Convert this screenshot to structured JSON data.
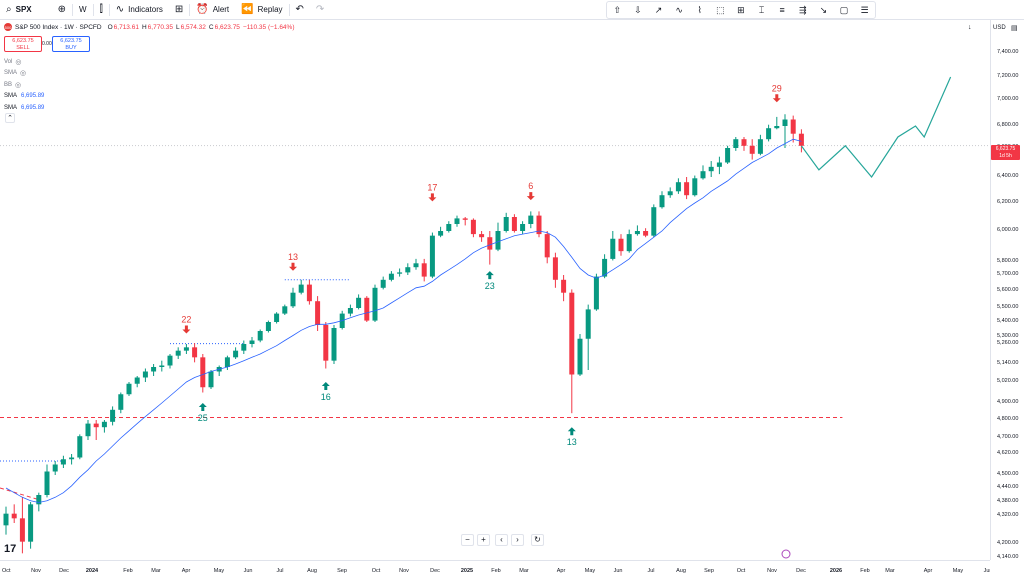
{
  "toolbar": {
    "symbol": "SPX",
    "interval": "W",
    "indicators_label": "Indicators",
    "alert_label": "Alert",
    "replay_label": "Replay"
  },
  "legend": {
    "title": "S&P 500 Index · 1W · SPCFD",
    "open_label": "O",
    "open": "6,713.61",
    "high_label": "H",
    "high": "6,770.35",
    "low_label": "L",
    "low": "6,574.32",
    "close_label": "C",
    "close": "6,623.75",
    "change": "−110.35 (−1.64%)",
    "sell_price": "6,623.75",
    "sell_label": "SELL",
    "buy_price": "6,623.75",
    "buy_label": "BUY",
    "spread": "0.00",
    "indicators": [
      {
        "name": "Vol",
        "value": ""
      },
      {
        "name": "SMA",
        "value": ""
      },
      {
        "name": "BB",
        "value": ""
      },
      {
        "name": "SMA",
        "value": "6,695.89"
      },
      {
        "name": "SMA",
        "value": "6,695.89"
      }
    ]
  },
  "price_axis": {
    "currency": "USD",
    "current_price": "6,623.75",
    "countdown": "1d 5h"
  },
  "colors": {
    "up": "#089981",
    "down": "#f23645",
    "sma": "#2962ff",
    "projection": "#26a69a",
    "annotation_down": "#e53935",
    "annotation_up": "#00897b"
  },
  "chart_data": {
    "type": "candlestick",
    "series_name": "S&P 500 Index",
    "interval": "1W",
    "y_ticks": [
      4140,
      4200,
      4320,
      4380,
      4440,
      4500,
      4620,
      4700,
      4800,
      4900,
      5020,
      5140,
      5260,
      5300,
      5400,
      5500,
      5600,
      5700,
      5800,
      6000,
      6200,
      6400,
      6600,
      6800,
      7000,
      7200,
      7400
    ],
    "y_tick_labels": [
      "4,140.00",
      "4,200.00",
      "4,320.00",
      "4,380.00",
      "4,440.00",
      "4,500.00",
      "4,620.00",
      "4,700.00",
      "4,800.00",
      "4,900.00",
      "5,020.00",
      "5,140.00",
      "5,260.00",
      "5,300.00",
      "5,400.00",
      "5,500.00",
      "5,600.00",
      "5,700.00",
      "5,800.00",
      "6,000.00",
      "6,200.00",
      "6,400.00",
      "6,600.00",
      "6,800.00",
      "7,000.00",
      "7,200.00",
      "7,400.00"
    ],
    "x_labels": [
      "Oct",
      "Nov",
      "Dec",
      "2024",
      "Feb",
      "Mar",
      "Apr",
      "May",
      "Jun",
      "Jul",
      "Aug",
      "Sep",
      "Oct",
      "Nov",
      "Dec",
      "2025",
      "Feb",
      "Mar",
      "Apr",
      "May",
      "Jun",
      "Jul",
      "Aug",
      "Sep",
      "Oct",
      "Nov",
      "Dec",
      "2026",
      "Feb",
      "Mar",
      "Apr",
      "May",
      "Jun"
    ],
    "candles": [
      {
        "o": 4280,
        "h": 4360,
        "l": 4240,
        "c": 4330
      },
      {
        "o": 4330,
        "h": 4370,
        "l": 4290,
        "c": 4310
      },
      {
        "o": 4310,
        "h": 4400,
        "l": 4160,
        "c": 4210
      },
      {
        "o": 4210,
        "h": 4380,
        "l": 4180,
        "c": 4370
      },
      {
        "o": 4370,
        "h": 4420,
        "l": 4340,
        "c": 4410
      },
      {
        "o": 4410,
        "h": 4560,
        "l": 4400,
        "c": 4520
      },
      {
        "o": 4520,
        "h": 4580,
        "l": 4500,
        "c": 4560
      },
      {
        "o": 4560,
        "h": 4610,
        "l": 4540,
        "c": 4590
      },
      {
        "o": 4590,
        "h": 4620,
        "l": 4560,
        "c": 4600
      },
      {
        "o": 4600,
        "h": 4720,
        "l": 4590,
        "c": 4710
      },
      {
        "o": 4710,
        "h": 4800,
        "l": 4690,
        "c": 4780
      },
      {
        "o": 4780,
        "h": 4800,
        "l": 4690,
        "c": 4760
      },
      {
        "o": 4760,
        "h": 4800,
        "l": 4730,
        "c": 4790
      },
      {
        "o": 4790,
        "h": 4880,
        "l": 4770,
        "c": 4860
      },
      {
        "o": 4860,
        "h": 4960,
        "l": 4840,
        "c": 4950
      },
      {
        "o": 4950,
        "h": 5020,
        "l": 4940,
        "c": 5010
      },
      {
        "o": 5010,
        "h": 5060,
        "l": 4990,
        "c": 5050
      },
      {
        "o": 5050,
        "h": 5110,
        "l": 5020,
        "c": 5090
      },
      {
        "o": 5090,
        "h": 5140,
        "l": 5060,
        "c": 5120
      },
      {
        "o": 5120,
        "h": 5160,
        "l": 5090,
        "c": 5130
      },
      {
        "o": 5130,
        "h": 5200,
        "l": 5110,
        "c": 5190
      },
      {
        "o": 5190,
        "h": 5240,
        "l": 5170,
        "c": 5220
      },
      {
        "o": 5220,
        "h": 5260,
        "l": 5200,
        "c": 5240
      },
      {
        "o": 5240,
        "h": 5265,
        "l": 5150,
        "c": 5180
      },
      {
        "o": 5180,
        "h": 5200,
        "l": 4960,
        "c": 4990
      },
      {
        "o": 4990,
        "h": 5100,
        "l": 4980,
        "c": 5090
      },
      {
        "o": 5090,
        "h": 5130,
        "l": 5060,
        "c": 5120
      },
      {
        "o": 5120,
        "h": 5190,
        "l": 5100,
        "c": 5180
      },
      {
        "o": 5180,
        "h": 5240,
        "l": 5170,
        "c": 5220
      },
      {
        "o": 5220,
        "h": 5280,
        "l": 5200,
        "c": 5260
      },
      {
        "o": 5260,
        "h": 5300,
        "l": 5240,
        "c": 5280
      },
      {
        "o": 5280,
        "h": 5350,
        "l": 5270,
        "c": 5340
      },
      {
        "o": 5340,
        "h": 5410,
        "l": 5330,
        "c": 5400
      },
      {
        "o": 5400,
        "h": 5470,
        "l": 5390,
        "c": 5460
      },
      {
        "o": 5460,
        "h": 5520,
        "l": 5450,
        "c": 5510
      },
      {
        "o": 5510,
        "h": 5620,
        "l": 5500,
        "c": 5590
      },
      {
        "o": 5590,
        "h": 5670,
        "l": 5580,
        "c": 5640
      },
      {
        "o": 5640,
        "h": 5670,
        "l": 5520,
        "c": 5540
      },
      {
        "o": 5540,
        "h": 5570,
        "l": 5340,
        "c": 5380
      },
      {
        "o": 5380,
        "h": 5400,
        "l": 5110,
        "c": 5160
      },
      {
        "o": 5160,
        "h": 5380,
        "l": 5140,
        "c": 5360
      },
      {
        "o": 5360,
        "h": 5480,
        "l": 5350,
        "c": 5460
      },
      {
        "o": 5460,
        "h": 5520,
        "l": 5440,
        "c": 5500
      },
      {
        "o": 5500,
        "h": 5580,
        "l": 5490,
        "c": 5560
      },
      {
        "o": 5560,
        "h": 5570,
        "l": 5400,
        "c": 5410
      },
      {
        "o": 5410,
        "h": 5640,
        "l": 5400,
        "c": 5620
      },
      {
        "o": 5620,
        "h": 5690,
        "l": 5610,
        "c": 5670
      },
      {
        "o": 5670,
        "h": 5730,
        "l": 5660,
        "c": 5710
      },
      {
        "o": 5710,
        "h": 5750,
        "l": 5690,
        "c": 5720
      },
      {
        "o": 5720,
        "h": 5790,
        "l": 5700,
        "c": 5760
      },
      {
        "o": 5760,
        "h": 5820,
        "l": 5740,
        "c": 5790
      },
      {
        "o": 5790,
        "h": 5820,
        "l": 5660,
        "c": 5690
      },
      {
        "o": 5690,
        "h": 5990,
        "l": 5680,
        "c": 5970
      },
      {
        "o": 5970,
        "h": 6030,
        "l": 5960,
        "c": 6000
      },
      {
        "o": 6000,
        "h": 6070,
        "l": 5990,
        "c": 6050
      },
      {
        "o": 6050,
        "h": 6110,
        "l": 6030,
        "c": 6090
      },
      {
        "o": 6090,
        "h": 6100,
        "l": 6040,
        "c": 6080
      },
      {
        "o": 6080,
        "h": 6090,
        "l": 5960,
        "c": 5980
      },
      {
        "o": 5980,
        "h": 6000,
        "l": 5930,
        "c": 5960
      },
      {
        "o": 5960,
        "h": 6000,
        "l": 5780,
        "c": 5880
      },
      {
        "o": 5880,
        "h": 6060,
        "l": 5870,
        "c": 6000
      },
      {
        "o": 6000,
        "h": 6130,
        "l": 5990,
        "c": 6100
      },
      {
        "o": 6100,
        "h": 6120,
        "l": 5990,
        "c": 6000
      },
      {
        "o": 6000,
        "h": 6070,
        "l": 5980,
        "c": 6050
      },
      {
        "o": 6050,
        "h": 6140,
        "l": 6020,
        "c": 6110
      },
      {
        "o": 6110,
        "h": 6140,
        "l": 5960,
        "c": 5980
      },
      {
        "o": 5980,
        "h": 6000,
        "l": 5790,
        "c": 5830
      },
      {
        "o": 5830,
        "h": 5860,
        "l": 5620,
        "c": 5670
      },
      {
        "o": 5670,
        "h": 5700,
        "l": 5540,
        "c": 5590
      },
      {
        "o": 5590,
        "h": 5610,
        "l": 4840,
        "c": 5070
      },
      {
        "o": 5070,
        "h": 5320,
        "l": 5060,
        "c": 5290
      },
      {
        "o": 5290,
        "h": 5520,
        "l": 5100,
        "c": 5490
      },
      {
        "o": 5490,
        "h": 5710,
        "l": 5480,
        "c": 5690
      },
      {
        "o": 5690,
        "h": 5850,
        "l": 5680,
        "c": 5820
      },
      {
        "o": 5820,
        "h": 6000,
        "l": 5810,
        "c": 5950
      },
      {
        "o": 5950,
        "h": 5980,
        "l": 5840,
        "c": 5870
      },
      {
        "o": 5870,
        "h": 6010,
        "l": 5860,
        "c": 5980
      },
      {
        "o": 5980,
        "h": 6040,
        "l": 5970,
        "c": 6000
      },
      {
        "o": 6000,
        "h": 6020,
        "l": 5960,
        "c": 5970
      },
      {
        "o": 5970,
        "h": 6190,
        "l": 5960,
        "c": 6170
      },
      {
        "o": 6170,
        "h": 6290,
        "l": 6160,
        "c": 6260
      },
      {
        "o": 6260,
        "h": 6320,
        "l": 6240,
        "c": 6290
      },
      {
        "o": 6290,
        "h": 6390,
        "l": 6270,
        "c": 6360
      },
      {
        "o": 6360,
        "h": 6400,
        "l": 6230,
        "c": 6260
      },
      {
        "o": 6260,
        "h": 6410,
        "l": 6250,
        "c": 6390
      },
      {
        "o": 6390,
        "h": 6480,
        "l": 6380,
        "c": 6440
      },
      {
        "o": 6440,
        "h": 6510,
        "l": 6400,
        "c": 6470
      },
      {
        "o": 6470,
        "h": 6540,
        "l": 6420,
        "c": 6500
      },
      {
        "o": 6500,
        "h": 6620,
        "l": 6490,
        "c": 6600
      },
      {
        "o": 6600,
        "h": 6700,
        "l": 6580,
        "c": 6680
      },
      {
        "o": 6680,
        "h": 6700,
        "l": 6580,
        "c": 6620
      },
      {
        "o": 6620,
        "h": 6680,
        "l": 6520,
        "c": 6560
      },
      {
        "o": 6560,
        "h": 6720,
        "l": 6550,
        "c": 6680
      },
      {
        "o": 6680,
        "h": 6810,
        "l": 6660,
        "c": 6780
      },
      {
        "o": 6780,
        "h": 6870,
        "l": 6770,
        "c": 6800
      },
      {
        "o": 6800,
        "h": 6890,
        "l": 6600,
        "c": 6850
      },
      {
        "o": 6850,
        "h": 6880,
        "l": 6650,
        "c": 6730
      },
      {
        "o": 6730,
        "h": 6770,
        "l": 6570,
        "c": 6620
      }
    ],
    "sma": [
      4440,
      4420,
      4400,
      4385,
      4378,
      4385,
      4400,
      4420,
      4450,
      4490,
      4530,
      4580,
      4620,
      4660,
      4700,
      4740,
      4780,
      4820,
      4860,
      4900,
      4940,
      4980,
      5020,
      5050,
      5070,
      5090,
      5105,
      5120,
      5140,
      5160,
      5180,
      5200,
      5225,
      5250,
      5280,
      5310,
      5345,
      5370,
      5385,
      5385,
      5395,
      5410,
      5430,
      5450,
      5465,
      5480,
      5500,
      5530,
      5560,
      5590,
      5620,
      5630,
      5660,
      5700,
      5740,
      5780,
      5820,
      5860,
      5890,
      5910,
      5930,
      5950,
      5970,
      5980,
      5990,
      6000,
      5990,
      5960,
      5900,
      5830,
      5750,
      5700,
      5680,
      5700,
      5740,
      5780,
      5820,
      5880,
      5920,
      5960,
      6000,
      6060,
      6110,
      6160,
      6200,
      6240,
      6290,
      6330,
      6370,
      6420,
      6460,
      6500,
      6530,
      6560,
      6600,
      6640,
      6680,
      6660
    ],
    "projection": [
      [
        6620,
        0
      ],
      [
        6450,
        2
      ],
      [
        6620,
        5
      ],
      [
        6400,
        8
      ],
      [
        6700,
        11
      ],
      [
        6800,
        13
      ],
      [
        6700,
        14
      ],
      [
        7200,
        17
      ]
    ],
    "annotations": [
      {
        "label": "22",
        "direction": "down",
        "candle": 22,
        "price": 5330
      },
      {
        "label": "25",
        "direction": "up",
        "candle": 24,
        "price": 4900
      },
      {
        "label": "13",
        "direction": "down",
        "candle": 35,
        "price": 5740
      },
      {
        "label": "16",
        "direction": "up",
        "candle": 39,
        "price": 5020
      },
      {
        "label": "17",
        "direction": "down",
        "candle": 52,
        "price": 6220
      },
      {
        "label": "23",
        "direction": "up",
        "candle": 59,
        "price": 5730
      },
      {
        "label": "6",
        "direction": "down",
        "candle": 64,
        "price": 6230
      },
      {
        "label": "13",
        "direction": "up",
        "candle": 69,
        "price": 4760
      },
      {
        "label": "29",
        "direction": "down",
        "candle": 94,
        "price": 6990
      }
    ],
    "dotted_levels": [
      {
        "price": 4580,
        "from_candle": -2,
        "to_candle": 7
      },
      {
        "price": 5262,
        "from_candle": 20,
        "to_candle": 29
      },
      {
        "price": 5670,
        "from_candle": 34,
        "to_candle": 42
      },
      {
        "price": 4815,
        "from_candle": -2,
        "to_candle": 102
      }
    ]
  }
}
